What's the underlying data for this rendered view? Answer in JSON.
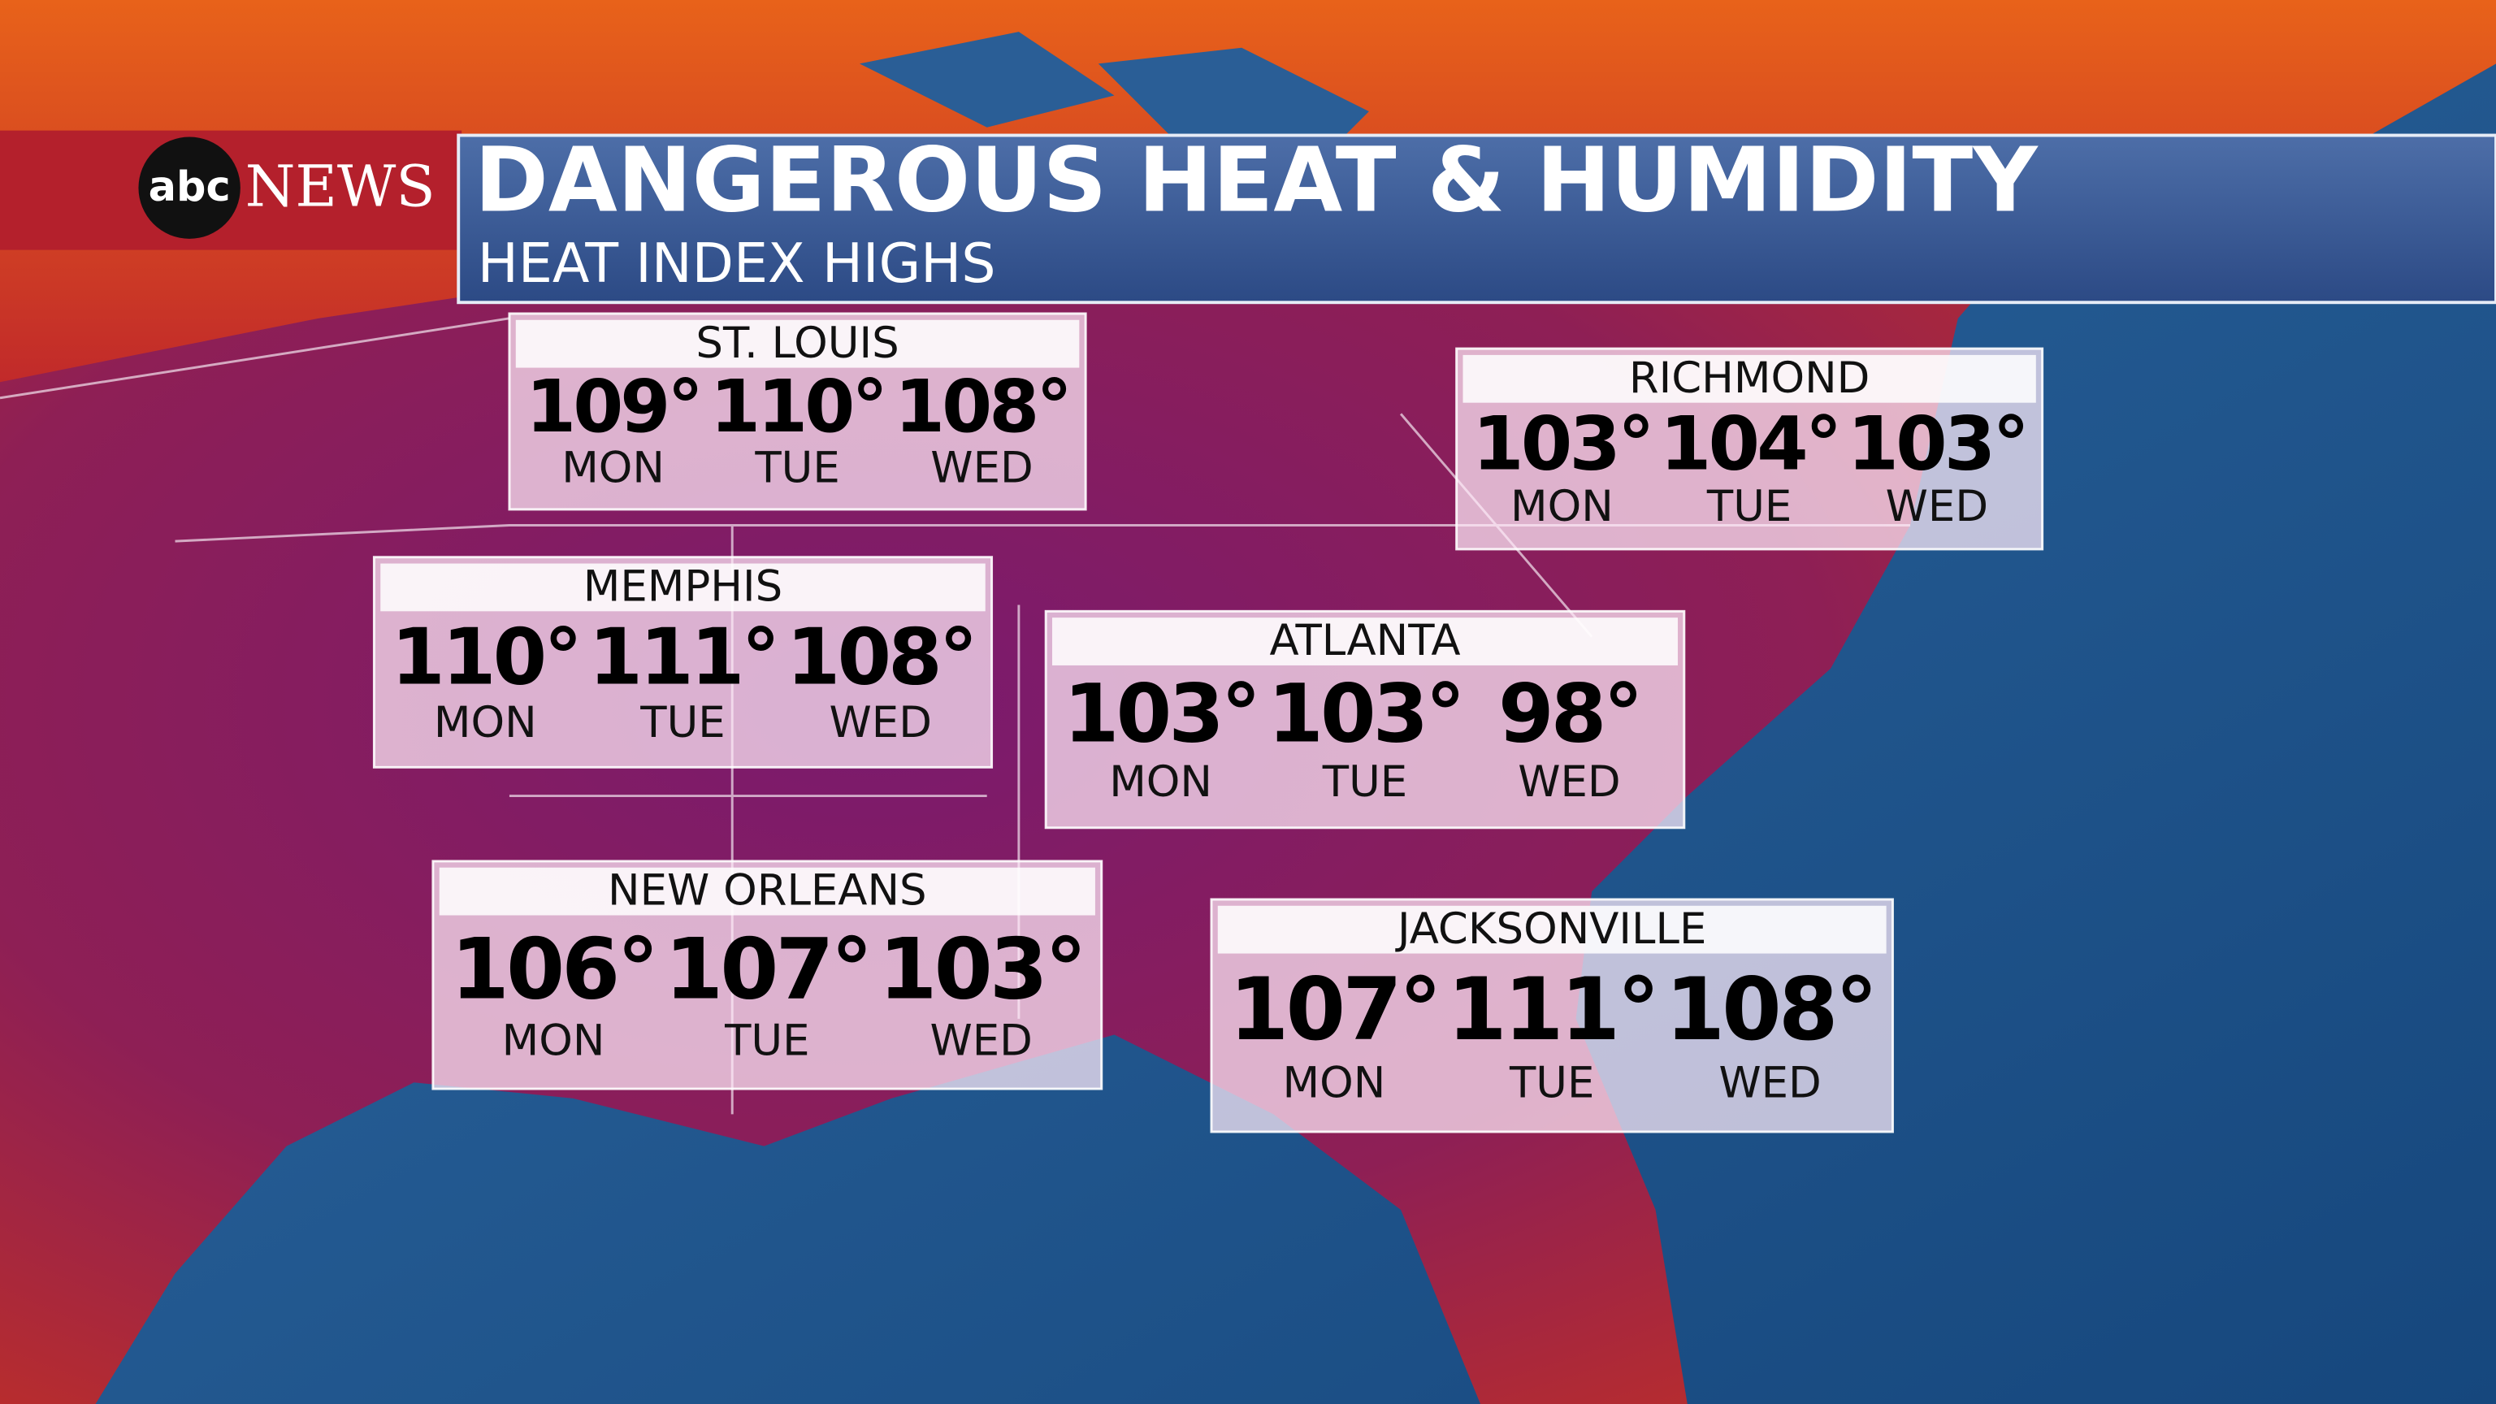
{
  "logo": {
    "abc": "abc",
    "news": "NEWS"
  },
  "header": {
    "title": "DANGEROUS HEAT & HUMIDITY",
    "subtitle": "HEAT INDEX HIGHS"
  },
  "cities": [
    {
      "name": "ST. LOUIS",
      "forecast": [
        {
          "value": "109°",
          "day": "MON"
        },
        {
          "value": "110°",
          "day": "TUE"
        },
        {
          "value": "108°",
          "day": "WED"
        }
      ]
    },
    {
      "name": "RICHMOND",
      "forecast": [
        {
          "value": "103°",
          "day": "MON"
        },
        {
          "value": "104°",
          "day": "TUE"
        },
        {
          "value": "103°",
          "day": "WED"
        }
      ]
    },
    {
      "name": "MEMPHIS",
      "forecast": [
        {
          "value": "110°",
          "day": "MON"
        },
        {
          "value": "111°",
          "day": "TUE"
        },
        {
          "value": "108°",
          "day": "WED"
        }
      ]
    },
    {
      "name": "ATLANTA",
      "forecast": [
        {
          "value": "103°",
          "day": "MON"
        },
        {
          "value": "103°",
          "day": "TUE"
        },
        {
          "value": "98°",
          "day": "WED"
        }
      ]
    },
    {
      "name": "NEW ORLEANS",
      "forecast": [
        {
          "value": "106°",
          "day": "MON"
        },
        {
          "value": "107°",
          "day": "TUE"
        },
        {
          "value": "103°",
          "day": "WED"
        }
      ]
    },
    {
      "name": "JACKSONVILLE",
      "forecast": [
        {
          "value": "107°",
          "day": "MON"
        },
        {
          "value": "111°",
          "day": "TUE"
        },
        {
          "value": "108°",
          "day": "WED"
        }
      ]
    }
  ]
}
